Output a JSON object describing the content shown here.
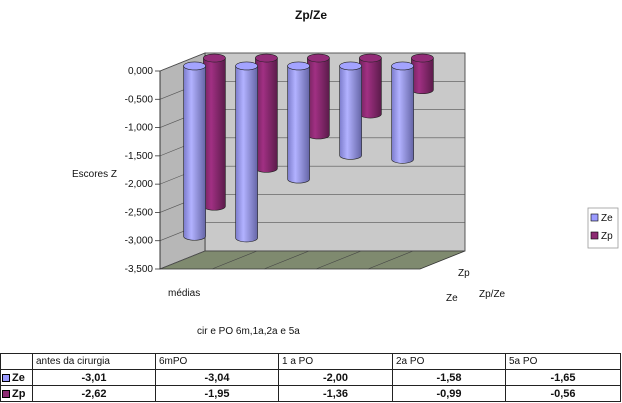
{
  "chart_data": {
    "type": "bar",
    "subtype": "3d-clustered-column",
    "title": "Zp/Ze",
    "xlabel": "cir e  PO 6m,1a,2a e 5a",
    "ylabel": "Escores  Z",
    "depth_axis_labels": [
      "Zp",
      "Ze"
    ],
    "depth_axis_title": "Zp/Ze",
    "first_category_label": "médias",
    "ylim": [
      -3.5,
      0
    ],
    "yticks": [
      "0,000",
      "-0,500",
      "-1,000",
      "-1,500",
      "-2,000",
      "-2,500",
      "-3,000",
      "-3,500"
    ],
    "categories": [
      "antes da cirurgia",
      "6mPO",
      "1 a PO",
      "2a PO",
      "5a PO"
    ],
    "series": [
      {
        "name": "Ze",
        "values": [
          -3.01,
          -3.04,
          -2.0,
          -1.58,
          -1.65
        ],
        "color": "#9b9bff"
      },
      {
        "name": "Zp",
        "values": [
          -2.62,
          -1.95,
          -1.36,
          -0.99,
          -0.56
        ],
        "color": "#8c2a72"
      }
    ],
    "legend": [
      "Ze",
      "Zp"
    ],
    "legend_position": "right",
    "grid": true
  },
  "table": {
    "headers": [
      "antes da cirurgia",
      "6mPO",
      "1 a PO",
      "2a PO",
      "5a PO"
    ],
    "rows": [
      {
        "label": "Ze",
        "values": [
          "-3,01",
          "-3,04",
          "-2,00",
          "-1,58",
          "-1,65"
        ]
      },
      {
        "label": "Zp",
        "values": [
          "-2,62",
          "-1,95",
          "-1,36",
          "-0,99",
          "-0,56"
        ]
      }
    ]
  }
}
